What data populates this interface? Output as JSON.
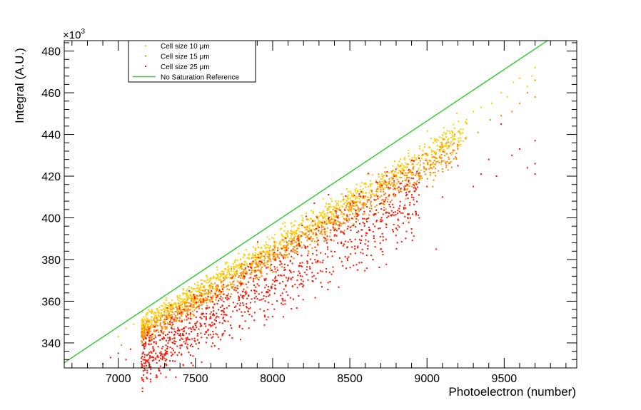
{
  "chart_data": {
    "type": "scatter",
    "title": "",
    "xlabel": "Photoelectron (number)",
    "ylabel": "Integral (A.U.)",
    "y_multiplier_label": "×10",
    "y_multiplier_exp": "3",
    "xlim": [
      6650,
      9970
    ],
    "ylim": [
      328,
      485
    ],
    "x_ticks": [
      7000,
      7500,
      8000,
      8500,
      9000,
      9500
    ],
    "y_ticks": [
      340,
      360,
      380,
      400,
      420,
      440,
      460,
      480
    ],
    "x_minor_step": 100,
    "y_minor_step": 4,
    "grid": false,
    "legend_position": "top-left",
    "series": [
      {
        "name": "Cell size 10 μm",
        "kind": "points",
        "color": "#ffcc00",
        "band": {
          "x_range": [
            7150,
            9260
          ],
          "slope": 0.04405,
          "intercept": 34.0,
          "spread": 2.4
        },
        "points": [
          [
            9350,
            453
          ],
          [
            9420,
            455
          ],
          [
            9480,
            460
          ],
          [
            9520,
            458
          ],
          [
            9560,
            465
          ],
          [
            9600,
            467
          ],
          [
            9650,
            463
          ],
          [
            9680,
            468
          ],
          [
            9700,
            472
          ],
          [
            9250,
            446
          ],
          [
            7100,
            349
          ],
          [
            7050,
            347
          ],
          [
            7000,
            343
          ],
          [
            9300,
            451
          ]
        ]
      },
      {
        "name": "Cell size 15 μm",
        "kind": "points",
        "color": "#ff8800",
        "band": {
          "x_range": [
            7150,
            9200
          ],
          "slope": 0.04385,
          "intercept": 30.0,
          "spread": 2.4
        },
        "points": [
          [
            9250,
            438
          ],
          [
            9330,
            441
          ],
          [
            9410,
            447
          ],
          [
            9480,
            449
          ],
          [
            9550,
            451
          ],
          [
            9600,
            455
          ],
          [
            9700,
            466
          ],
          [
            9700,
            458
          ],
          [
            9650,
            460
          ],
          [
            7020,
            339
          ],
          [
            9200,
            435
          ]
        ]
      },
      {
        "name": "Cell size 25 μm",
        "kind": "points",
        "color": "#ff1100",
        "band": {
          "x_range": [
            7150,
            8950
          ],
          "slope": 0.0444,
          "intercept": 14.5,
          "spread": 6.5
        },
        "points": [
          [
            6900,
            330
          ],
          [
            6950,
            333
          ],
          [
            7000,
            335
          ],
          [
            7050,
            332
          ],
          [
            7080,
            337
          ],
          [
            7200,
            341
          ],
          [
            7300,
            334
          ],
          [
            9060,
            385
          ],
          [
            9400,
            428
          ],
          [
            9480,
            445
          ],
          [
            9550,
            430
          ],
          [
            9600,
            433
          ],
          [
            9700,
            437
          ],
          [
            9700,
            426
          ],
          [
            9700,
            421
          ],
          [
            9650,
            424
          ],
          [
            9450,
            420
          ],
          [
            9350,
            421
          ],
          [
            9300,
            415
          ],
          [
            9100,
            410
          ],
          [
            9200,
            425
          ],
          [
            8700,
            385
          ],
          [
            8650,
            380
          ],
          [
            8550,
            375
          ],
          [
            8950,
            400
          ],
          [
            9000,
            415
          ],
          [
            8850,
            405
          ],
          [
            8800,
            395
          ]
        ]
      },
      {
        "name": "No Saturation Reference",
        "kind": "line",
        "color": "#33cc33",
        "x": [
          6650,
          9780
        ],
        "y": [
          330.5,
          485
        ]
      }
    ]
  }
}
